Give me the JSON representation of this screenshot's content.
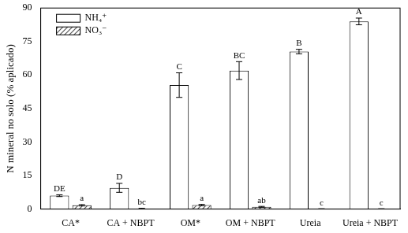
{
  "chart_data": {
    "type": "bar",
    "y_label": "N mineral no solo (% aplicado)",
    "categories": [
      "CA*",
      "CA + NBPT",
      "OM*",
      "OM + NBPT",
      "Ureia",
      "Ureia + NBPT"
    ],
    "series": [
      {
        "name": "NH₄⁺",
        "color": "#ffffff",
        "values": [
          6,
          9.5,
          55.5,
          62,
          70.5,
          84
        ],
        "errors": [
          0.4,
          2,
          5.5,
          4,
          1,
          1.5
        ],
        "letters": [
          "DE",
          "D",
          "C",
          "BC",
          "B",
          "A"
        ]
      },
      {
        "name": "NO₃⁻",
        "color": "#555555",
        "values": [
          1.7,
          0.2,
          1.8,
          1,
          0.1,
          0.1
        ],
        "errors": [
          0.3,
          0.1,
          0.3,
          0.2,
          0.05,
          0.05
        ],
        "letters": [
          "a",
          "bc",
          "a",
          "ab",
          "c",
          "c"
        ]
      }
    ],
    "ylim": [
      0,
      90
    ],
    "yticks": [
      0,
      15,
      30,
      45,
      60,
      75,
      90
    ],
    "grid": false,
    "legend": "upper left"
  }
}
